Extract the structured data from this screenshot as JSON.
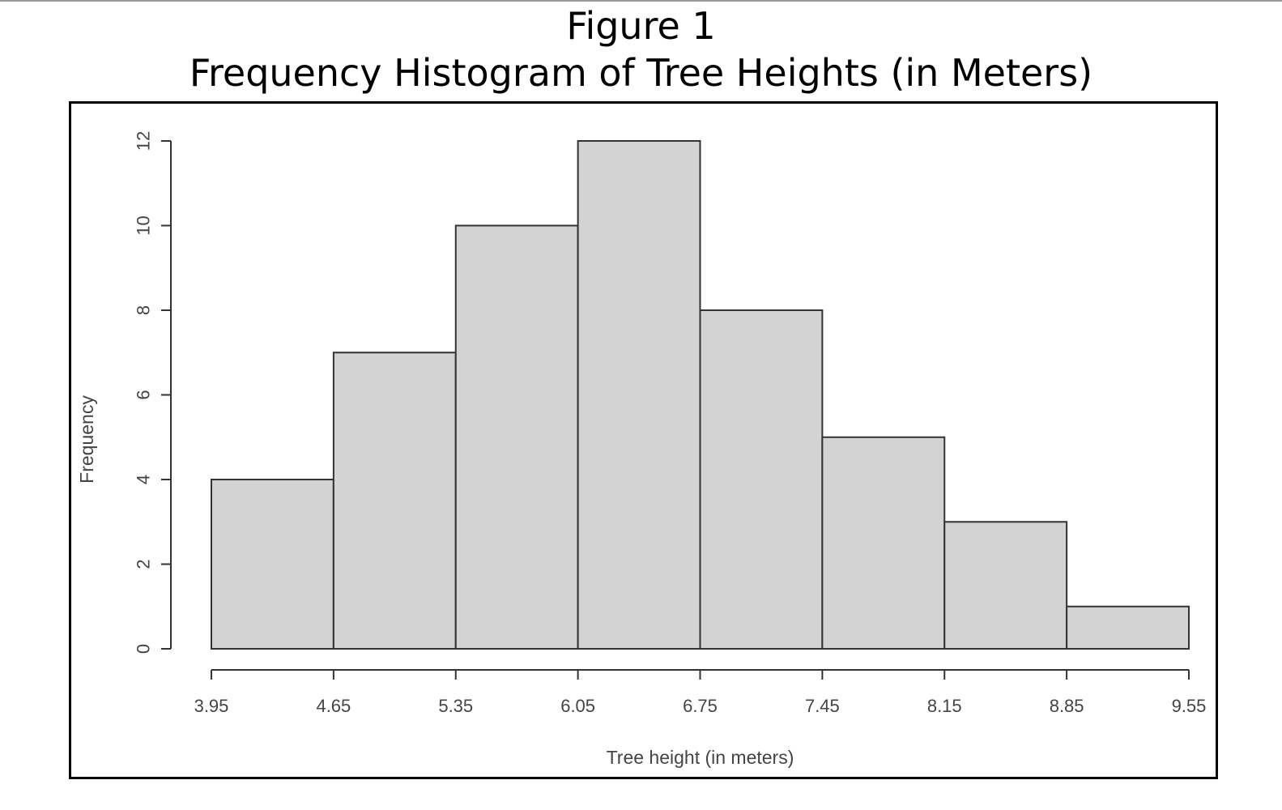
{
  "figure": {
    "label": "Figure 1",
    "title": "Frequency Histogram of Tree Heights (in Meters)"
  },
  "chart_data": {
    "type": "bar",
    "histogram": true,
    "bin_edges": [
      3.95,
      4.65,
      5.35,
      6.05,
      6.75,
      7.45,
      8.15,
      8.85,
      9.55
    ],
    "x_tick_labels": [
      "3.95",
      "4.65",
      "5.35",
      "6.05",
      "6.75",
      "7.45",
      "8.15",
      "8.85",
      "9.55"
    ],
    "values": [
      4,
      7,
      10,
      12,
      8,
      5,
      3,
      1
    ],
    "xlabel": "Tree height (in meters)",
    "ylabel": "Frequency",
    "y_ticks": [
      0,
      2,
      4,
      6,
      8,
      10,
      12
    ],
    "y_tick_labels": [
      "0",
      "2",
      "4",
      "6",
      "8",
      "10",
      "12"
    ],
    "ylim": [
      0,
      12
    ],
    "xlim": [
      3.95,
      9.55
    ],
    "grid": false,
    "legend": "none",
    "colors": {
      "bar_fill": "#d3d3d3",
      "bar_stroke": "#333333",
      "axis": "#333333",
      "text": "#444444"
    }
  }
}
